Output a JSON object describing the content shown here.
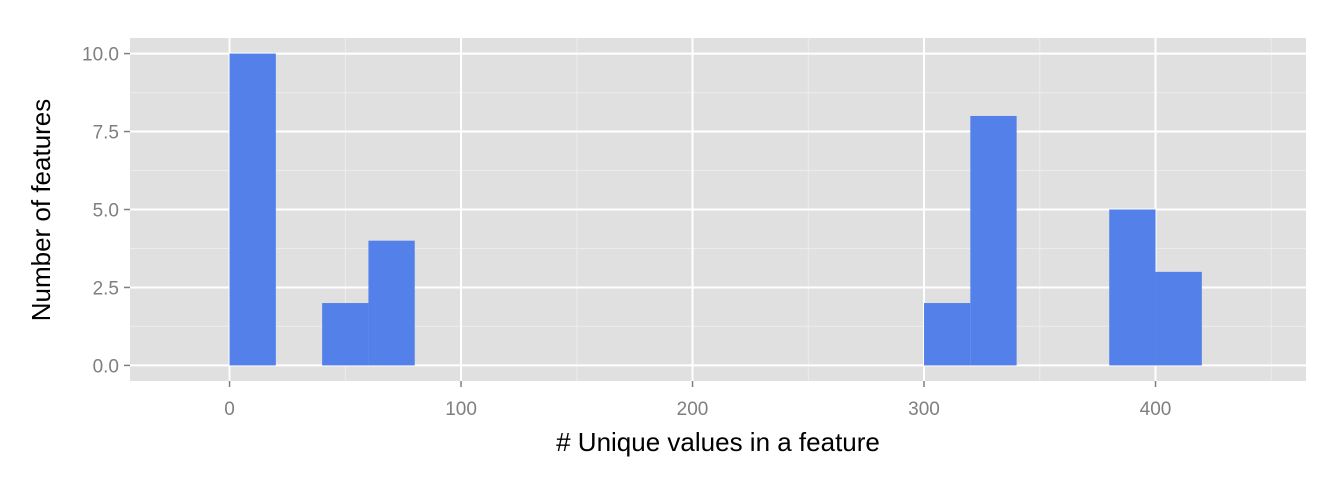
{
  "chart_data": {
    "type": "bar",
    "xlabel": "# Unique values in a feature",
    "ylabel": "Number of features",
    "xlim": [
      -43,
      465
    ],
    "ylim": [
      -0.5,
      10.5
    ],
    "x_ticks": [
      0,
      100,
      200,
      300,
      400
    ],
    "x_tick_labels": [
      "0",
      "100",
      "200",
      "300",
      "400"
    ],
    "x_minor_ticks": [
      50,
      150,
      250,
      350,
      450
    ],
    "y_ticks": [
      0,
      2.5,
      5,
      7.5,
      10
    ],
    "y_tick_labels": [
      "0.0",
      "2.5",
      "5.0",
      "7.5",
      "10.0"
    ],
    "y_minor_ticks": [
      1.25,
      3.75,
      6.25,
      8.75
    ],
    "bins": [
      {
        "x0": 0,
        "x1": 20,
        "count": 10
      },
      {
        "x0": 20,
        "x1": 40,
        "count": 0
      },
      {
        "x0": 40,
        "x1": 60,
        "count": 2
      },
      {
        "x0": 60,
        "x1": 80,
        "count": 4
      },
      {
        "x0": 80,
        "x1": 100,
        "count": 0
      },
      {
        "x0": 100,
        "x1": 120,
        "count": 0
      },
      {
        "x0": 120,
        "x1": 140,
        "count": 0
      },
      {
        "x0": 140,
        "x1": 160,
        "count": 0
      },
      {
        "x0": 160,
        "x1": 180,
        "count": 0
      },
      {
        "x0": 180,
        "x1": 200,
        "count": 0
      },
      {
        "x0": 200,
        "x1": 220,
        "count": 0
      },
      {
        "x0": 220,
        "x1": 240,
        "count": 0
      },
      {
        "x0": 240,
        "x1": 260,
        "count": 0
      },
      {
        "x0": 260,
        "x1": 280,
        "count": 0
      },
      {
        "x0": 280,
        "x1": 300,
        "count": 0
      },
      {
        "x0": 300,
        "x1": 320,
        "count": 2
      },
      {
        "x0": 320,
        "x1": 340,
        "count": 8
      },
      {
        "x0": 340,
        "x1": 360,
        "count": 0
      },
      {
        "x0": 360,
        "x1": 380,
        "count": 0
      },
      {
        "x0": 380,
        "x1": 400,
        "count": 5
      },
      {
        "x0": 400,
        "x1": 420,
        "count": 3
      }
    ],
    "colors": {
      "bar": "#5381e9",
      "panel": "#e0e0e0",
      "grid_major": "#ffffff",
      "grid_minor": "#ececec",
      "tick_text": "#7f7f7f",
      "tick_mark": "#7f7f7f"
    },
    "grid": true,
    "legend": "none"
  }
}
